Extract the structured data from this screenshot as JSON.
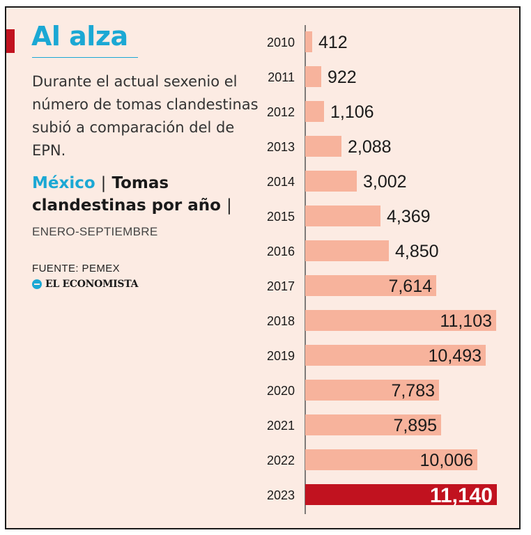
{
  "header": {
    "title": "Al alza",
    "subtitle": "Durante el actual sexenio el número de tomas clandestinas subió a comparación del de EPN."
  },
  "chart_heading": {
    "country": "México",
    "separator": "|",
    "topic": "Tomas clandestinas por año",
    "trailing_separator": "|",
    "period": "ENERO-SEPTIEMBRE"
  },
  "credits": {
    "source": "FUENTE: PEMEX",
    "publisher": "EL ECONOMISTA"
  },
  "colors": {
    "background": "#fcebe3",
    "bar": "#f7b39c",
    "highlight_bar": "#c1121f",
    "accent": "#1ba8d4"
  },
  "chart_data": {
    "type": "bar",
    "orientation": "horizontal",
    "title": "Tomas clandestinas por año",
    "xlabel": "",
    "ylabel": "",
    "xlim": [
      0,
      11140
    ],
    "categories": [
      "2010",
      "2011",
      "2012",
      "2013",
      "2014",
      "2015",
      "2016",
      "2017",
      "2018",
      "2019",
      "2020",
      "2021",
      "2022",
      "2023"
    ],
    "values": [
      412,
      922,
      1106,
      2088,
      3002,
      4369,
      4850,
      7614,
      11103,
      10493,
      7783,
      7895,
      10006,
      11140
    ],
    "value_labels": [
      "412",
      "922",
      "1,106",
      "2,088",
      "3,002",
      "4,369",
      "4,850",
      "7,614",
      "11,103",
      "10,493",
      "7,783",
      "7,895",
      "10,006",
      "11,140"
    ],
    "highlight_category": "2023"
  }
}
